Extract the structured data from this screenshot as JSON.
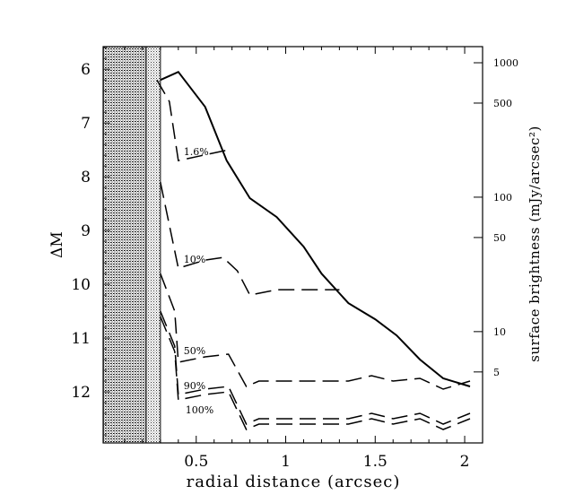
{
  "chart_data": {
    "type": "line",
    "xlabel": "radial distance (arcsec)",
    "ylabel": "ΔM",
    "ylabel_right": "surface brightness (mJy/arcsec²)",
    "xlim": [
      -0.02,
      2.1
    ],
    "ylim": [
      12.95,
      5.58
    ],
    "x_ticks": [
      {
        "value": 0.5,
        "label": "0.5"
      },
      {
        "value": 1,
        "label": "1"
      },
      {
        "value": 1.5,
        "label": "1.5"
      },
      {
        "value": 2,
        "label": "2"
      }
    ],
    "y_ticks": [
      {
        "value": 6,
        "label": "6"
      },
      {
        "value": 7,
        "label": "7"
      },
      {
        "value": 8,
        "label": "8"
      },
      {
        "value": 9,
        "label": "9"
      },
      {
        "value": 10,
        "label": "10"
      },
      {
        "value": 11,
        "label": "11"
      },
      {
        "value": 12,
        "label": "12"
      }
    ],
    "right_ticks": [
      {
        "dm": 5.88,
        "label": "1000"
      },
      {
        "dm": 6.63,
        "label": "500"
      },
      {
        "dm": 8.38,
        "label": "100"
      },
      {
        "dm": 9.13,
        "label": "50"
      },
      {
        "dm": 10.88,
        "label": "10"
      },
      {
        "dm": 11.63,
        "label": "5"
      }
    ],
    "shaded_regions": [
      {
        "x0": -0.02,
        "x1": 0.22,
        "pattern": "dense"
      },
      {
        "x0": 0.22,
        "x1": 0.3,
        "pattern": "light"
      }
    ],
    "series": [
      {
        "style": "solid",
        "points": [
          [
            0.3,
            6.2
          ],
          [
            0.4,
            6.05
          ],
          [
            0.55,
            6.7
          ],
          [
            0.67,
            7.7
          ],
          [
            0.8,
            8.4
          ],
          [
            0.95,
            8.75
          ],
          [
            1.1,
            9.3
          ],
          [
            1.2,
            9.8
          ],
          [
            1.35,
            10.35
          ],
          [
            1.5,
            10.65
          ],
          [
            1.62,
            10.95
          ],
          [
            1.75,
            11.4
          ],
          [
            1.88,
            11.75
          ],
          [
            2.03,
            11.9
          ]
        ]
      },
      {
        "name": "1.6%",
        "style": "dashed",
        "label_at": [
          0.43,
          7.6
        ],
        "points": [
          [
            0.28,
            6.2
          ],
          [
            0.35,
            6.6
          ],
          [
            0.4,
            7.7
          ],
          [
            0.68,
            7.5
          ]
        ]
      },
      {
        "name": "10%",
        "style": "dashed",
        "label_at": [
          0.43,
          9.6
        ],
        "points": [
          [
            0.3,
            8.1
          ],
          [
            0.4,
            9.7
          ],
          [
            0.55,
            9.55
          ],
          [
            0.65,
            9.5
          ],
          [
            0.73,
            9.75
          ],
          [
            0.8,
            10.2
          ],
          [
            0.95,
            10.1
          ],
          [
            1.3,
            10.1
          ]
        ]
      },
      {
        "name": "50%",
        "style": "dashed",
        "label_at": [
          0.43,
          11.3
        ],
        "points": [
          [
            0.3,
            9.8
          ],
          [
            0.38,
            10.5
          ],
          [
            0.4,
            11.45
          ],
          [
            0.55,
            11.35
          ],
          [
            0.68,
            11.3
          ],
          [
            0.78,
            11.9
          ],
          [
            0.85,
            11.8
          ],
          [
            1.0,
            11.8
          ],
          [
            1.35,
            11.8
          ],
          [
            1.48,
            11.7
          ],
          [
            1.6,
            11.8
          ],
          [
            1.75,
            11.75
          ],
          [
            1.88,
            11.95
          ],
          [
            2.03,
            11.8
          ]
        ]
      },
      {
        "name": "90%",
        "style": "dashed",
        "label_at": [
          0.43,
          11.95
        ],
        "points": [
          [
            0.3,
            10.5
          ],
          [
            0.38,
            11.15
          ],
          [
            0.4,
            12.05
          ],
          [
            0.55,
            11.95
          ],
          [
            0.68,
            11.9
          ],
          [
            0.78,
            12.6
          ],
          [
            0.85,
            12.5
          ],
          [
            1.0,
            12.5
          ],
          [
            1.35,
            12.5
          ],
          [
            1.48,
            12.4
          ],
          [
            1.6,
            12.5
          ],
          [
            1.75,
            12.4
          ],
          [
            1.88,
            12.6
          ],
          [
            2.03,
            12.4
          ]
        ]
      },
      {
        "name": "100%",
        "style": "dashed",
        "label_at": [
          0.44,
          12.4
        ],
        "points": [
          [
            0.3,
            10.6
          ],
          [
            0.38,
            11.25
          ],
          [
            0.4,
            12.15
          ],
          [
            0.55,
            12.05
          ],
          [
            0.68,
            12.0
          ],
          [
            0.78,
            12.7
          ],
          [
            0.85,
            12.6
          ],
          [
            1.0,
            12.6
          ],
          [
            1.35,
            12.6
          ],
          [
            1.48,
            12.5
          ],
          [
            1.6,
            12.6
          ],
          [
            1.75,
            12.5
          ],
          [
            1.88,
            12.7
          ],
          [
            2.03,
            12.5
          ]
        ]
      }
    ]
  }
}
